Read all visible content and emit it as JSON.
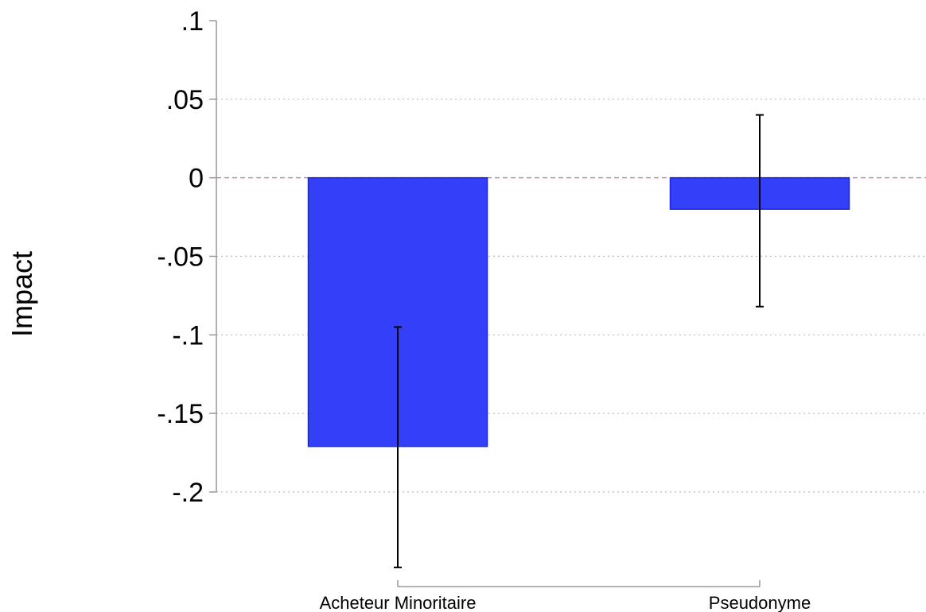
{
  "chart_data": {
    "type": "bar",
    "title": "",
    "xlabel": "",
    "ylabel": "Impact",
    "ylim": [
      -0.2,
      0.1
    ],
    "yticks": [
      0.1,
      0.05,
      0,
      -0.05,
      -0.1,
      -0.15,
      -0.2
    ],
    "ytick_labels": [
      ".1",
      ".05",
      "0",
      "-.05",
      "-.1",
      "-.15",
      "-.2"
    ],
    "categories": [
      "Acheteur Minoritaire",
      "Pseudonyme"
    ],
    "values": [
      -0.171,
      -0.02
    ],
    "error_bars": [
      {
        "low": -0.248,
        "high": -0.095
      },
      {
        "low": -0.082,
        "high": 0.04
      }
    ],
    "reference_line": 0,
    "grid": "horizontal dotted",
    "colors": {
      "bar_fill": "#3340f8",
      "bar_edge": "#1a25e0",
      "error_bar": "#000000",
      "reference_line": "#c98a9e",
      "grid": "#bbbbbb",
      "axis": "#999999"
    }
  }
}
